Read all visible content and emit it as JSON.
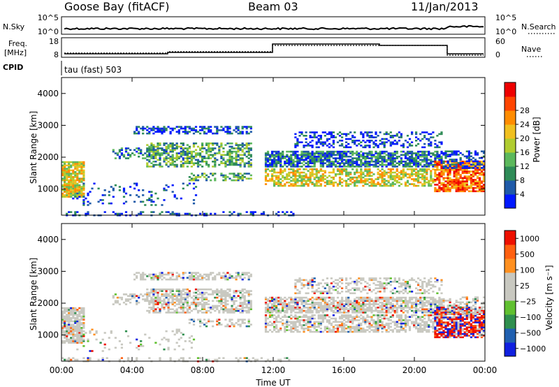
{
  "header": {
    "station": "Goose Bay (fitACF)",
    "beam": "Beam 03",
    "date": "11/Jan/2013"
  },
  "noise_panel": {
    "left_label": "N.Sky",
    "left_ticks": [
      "10^5",
      "10^0"
    ],
    "right_ticks": [
      "10^5",
      "10^0"
    ],
    "right_label": "N.Search"
  },
  "freq_panel": {
    "left_label_1": "Freq.",
    "left_label_2": "[MHz]",
    "left_ticks": [
      "18",
      "8"
    ],
    "right_ticks": [
      "60",
      "0"
    ],
    "right_label": "Nave",
    "cpid_label": "CPID",
    "cpid_text": "tau (fast) 503"
  },
  "colors": {
    "power_scale": [
      "#0018ff",
      "#1f5aa8",
      "#2e8b57",
      "#5cb85c",
      "#b0cc30",
      "#f0c020",
      "#ff8c00",
      "#ff4500",
      "#ee0000"
    ],
    "velocity_scale": [
      "#1020e0",
      "#2060b0",
      "#2f8f4e",
      "#60c030",
      "#c8c8c0",
      "#c8c8c0",
      "#ff9020",
      "#ff6010",
      "#ee1000"
    ]
  },
  "chart_data": [
    {
      "type": "heatmap",
      "title": "",
      "ylabel": "Slant Range [km]",
      "xlabel": "",
      "ylim": [
        180,
        4500
      ],
      "y_ticks": [
        "1000",
        "2000",
        "3000",
        "4000"
      ],
      "colorbar": {
        "label": "Power [dB]",
        "ticks": [
          "4",
          "8",
          "12",
          "16",
          "20",
          "24",
          "28"
        ]
      }
    },
    {
      "type": "heatmap",
      "title": "",
      "ylabel": "Slant Range [km]",
      "xlabel": "Time UT",
      "ylim": [
        180,
        4500
      ],
      "y_ticks": [
        "1000",
        "2000",
        "3000",
        "4000"
      ],
      "x_ticks": [
        "00:00",
        "04:00",
        "08:00",
        "12:00",
        "16:00",
        "20:00",
        "00:00"
      ],
      "colorbar": {
        "label": "Velocity [m s⁻¹]",
        "ticks": [
          "1000",
          "500",
          "100",
          "25",
          "−25",
          "−100",
          "−500",
          "−1000"
        ]
      }
    }
  ]
}
